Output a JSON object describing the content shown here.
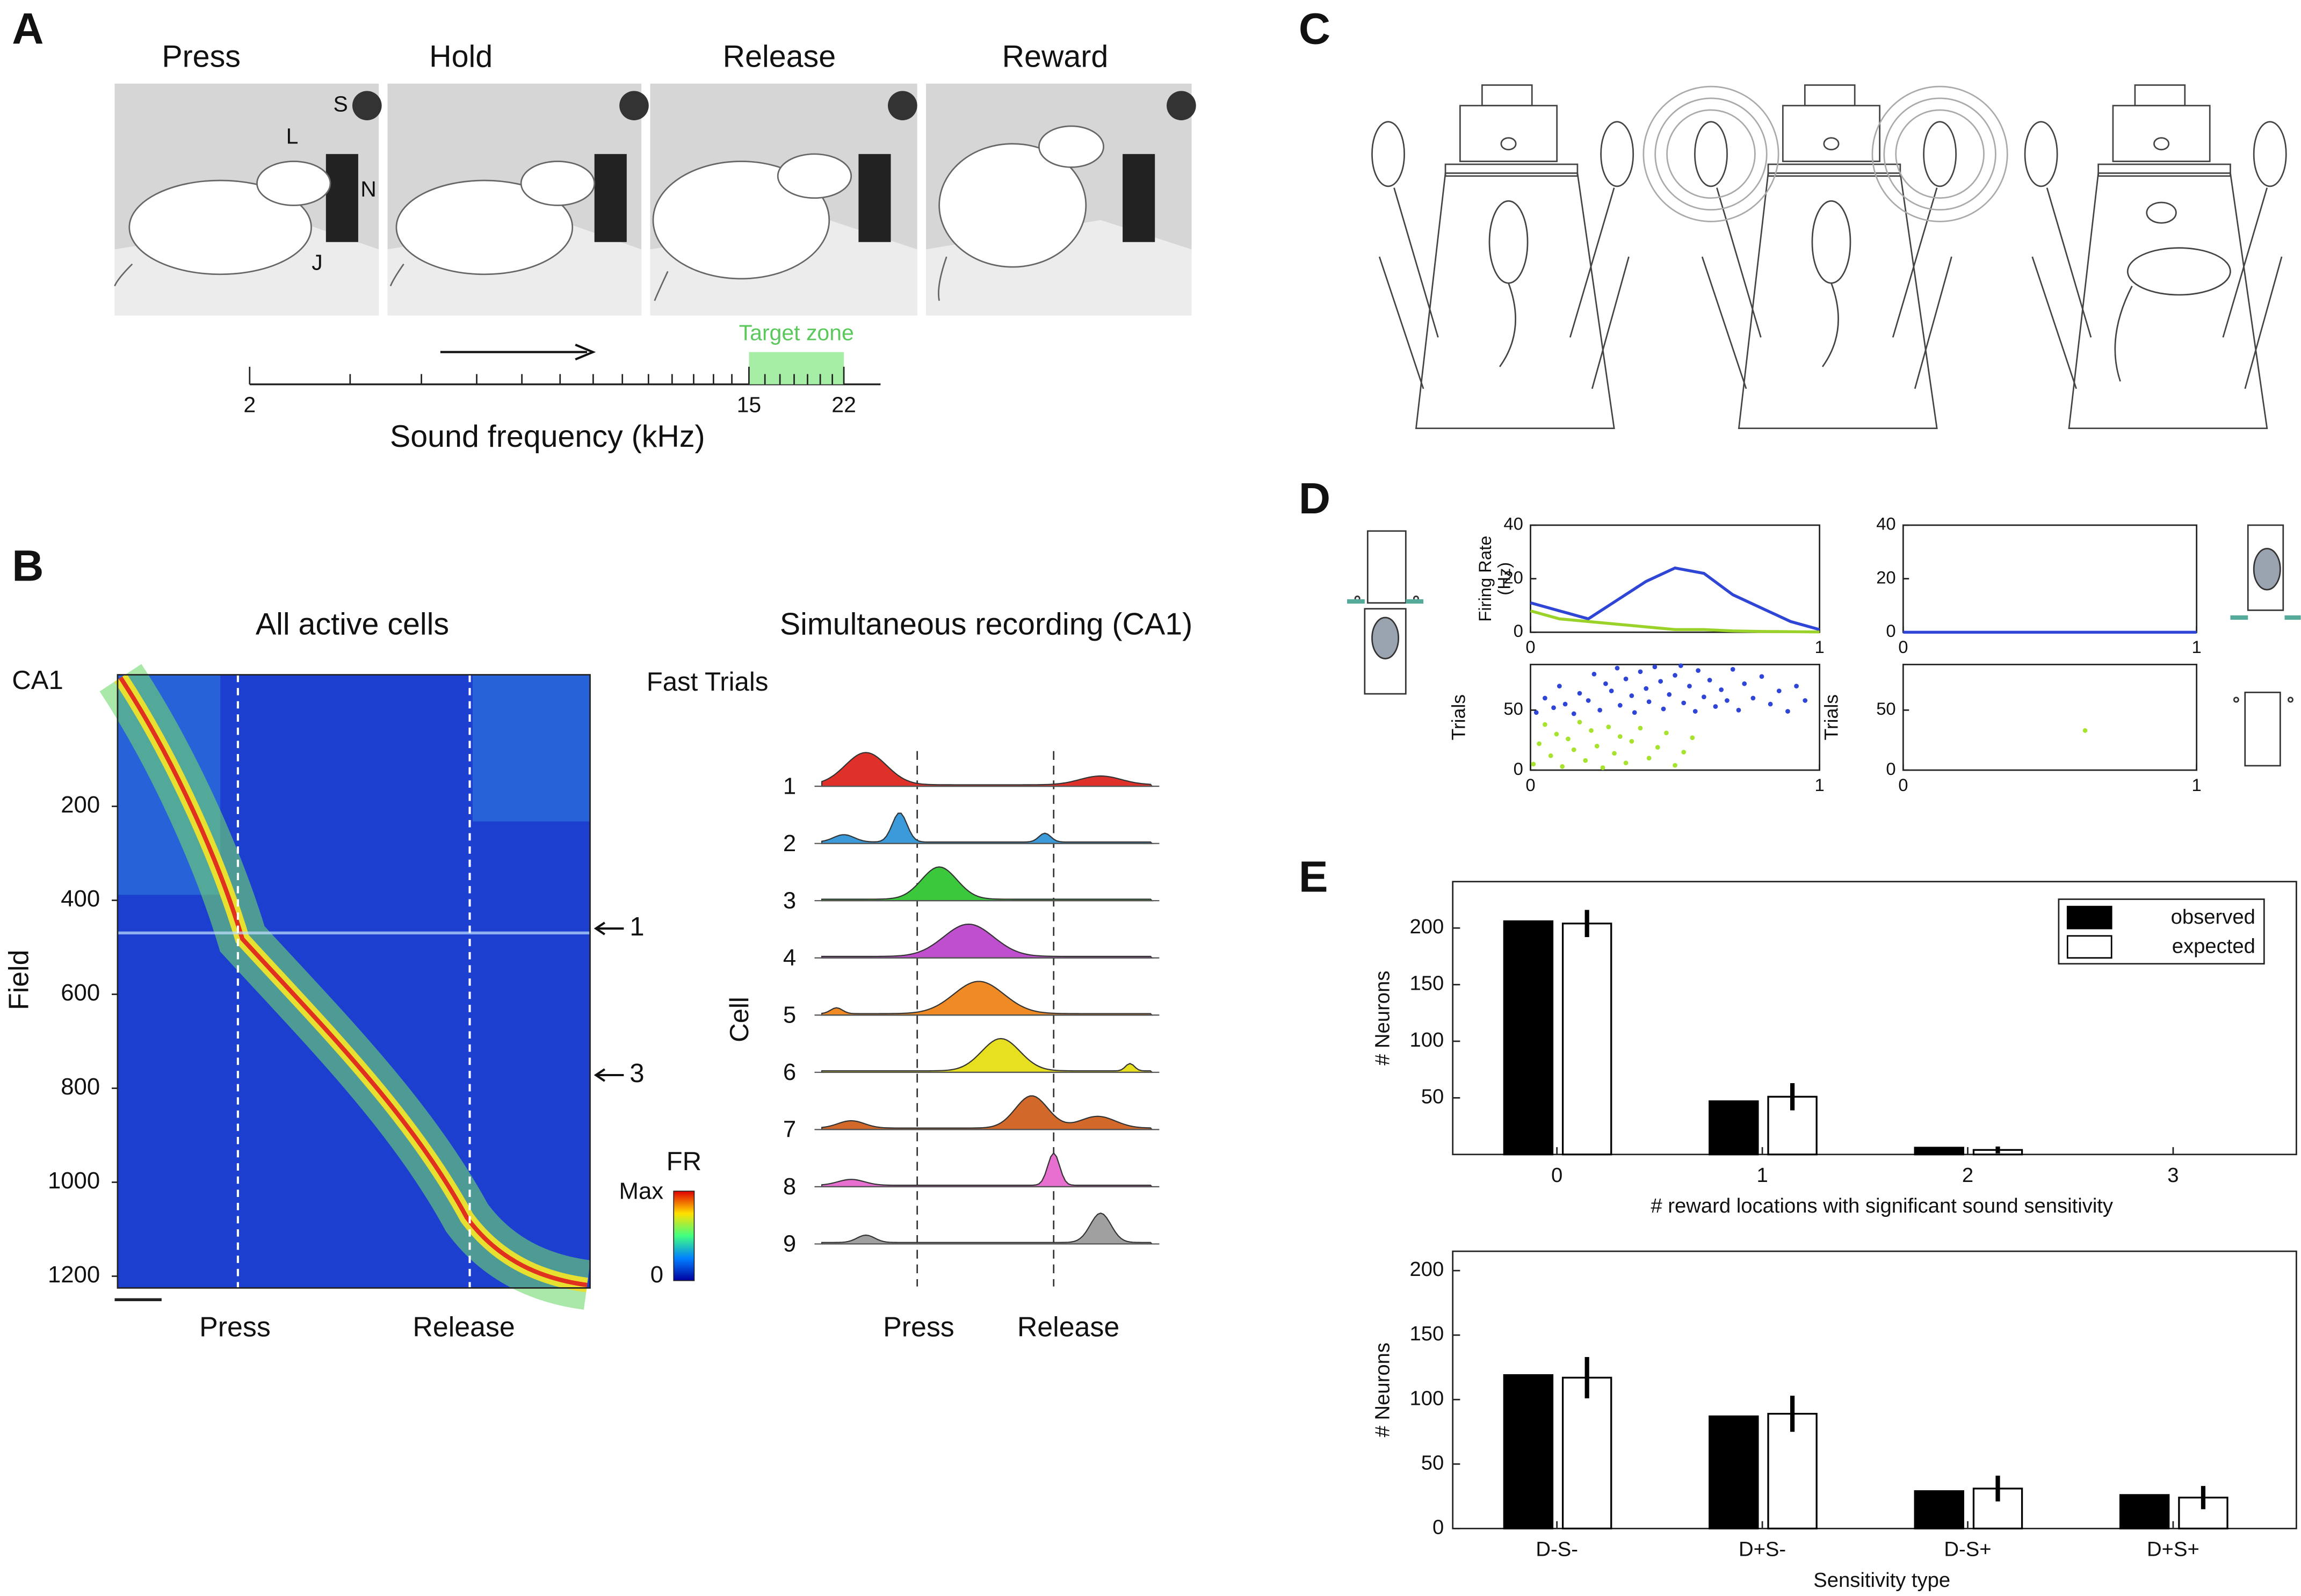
{
  "chart_data": [
    {
      "type": "frequency-axis",
      "panel": "A",
      "titles": [
        "Press",
        "Hold",
        "Release",
        "Reward"
      ],
      "annotations": [
        "S",
        "L",
        "N",
        "J"
      ],
      "xlabel": "Sound frequency (kHz)",
      "log_x": true,
      "xlim": [
        2,
        22
      ],
      "xticks": [
        2,
        15,
        22
      ],
      "minor_xticks": [
        3,
        4,
        5,
        6,
        7,
        8,
        9,
        10,
        11,
        12,
        13,
        14,
        16,
        17,
        18,
        19,
        20,
        21
      ],
      "target_zone": [
        15,
        22
      ],
      "target_label": "Target zone",
      "target_color": "#a6eea6"
    },
    {
      "type": "heatmap",
      "panel": "B",
      "title": "All active cells",
      "region": "CA1",
      "ylabel": "Field",
      "ylim": [
        -80,
        1225
      ],
      "yticks": [
        200,
        400,
        600,
        800,
        1000,
        1200
      ],
      "events": [
        "Press",
        "Release"
      ],
      "colorbar_title": "FR",
      "colorbar_labels": [
        "Max",
        "0"
      ],
      "arrows": [
        {
          "label": "1",
          "value": 460
        },
        {
          "label": "3",
          "value": 772
        }
      ]
    },
    {
      "type": "traces",
      "title": "Simultaneous recording (CA1)",
      "subtitle": "Fast Trials",
      "ylabel": "Cell",
      "categories": [
        "1",
        "2",
        "3",
        "4",
        "5",
        "6",
        "7",
        "8",
        "9"
      ],
      "colors": [
        "#e0302a",
        "#3b9ad9",
        "#3cc83c",
        "#c04fd0",
        "#f08a24",
        "#e6e020",
        "#d2692a",
        "#e66fd0",
        "#a0a0a0"
      ],
      "events": [
        "Press",
        "Release"
      ]
    },
    {
      "type": "line",
      "panel": "D",
      "ylabel": [
        "Firing Rate",
        "(Hz)"
      ],
      "x": [
        0,
        0.1,
        0.2,
        0.3,
        0.4,
        0.5,
        0.6,
        0.7,
        0.8,
        0.9,
        1
      ],
      "xlim": [
        0,
        1
      ],
      "xticks": [
        0,
        1
      ],
      "ylim": [
        0,
        40
      ],
      "yticks": [
        0,
        20,
        40
      ],
      "series": [
        {
          "color": "#2f45d6",
          "values": [
            11,
            8,
            5,
            12,
            19,
            24,
            22,
            14,
            9,
            4,
            1
          ]
        },
        {
          "color": "#9ad22a",
          "values": [
            8,
            5,
            4,
            3,
            2,
            1,
            1,
            0.5,
            0.3,
            0.2,
            0.1
          ]
        }
      ]
    },
    {
      "type": "scatter",
      "ylabel": "Trials",
      "xlim": [
        0,
        1
      ],
      "xticks": [
        0,
        1
      ],
      "ylim": [
        0,
        88
      ],
      "yticks": [
        0,
        50
      ],
      "series": [
        {
          "color": "#2f45d6",
          "x": [
            0.02,
            0.05,
            0.08,
            0.1,
            0.12,
            0.15,
            0.17,
            0.2,
            0.22,
            0.24,
            0.26,
            0.28,
            0.3,
            0.31,
            0.33,
            0.35,
            0.36,
            0.38,
            0.4,
            0.41,
            0.43,
            0.45,
            0.46,
            0.48,
            0.5,
            0.52,
            0.53,
            0.55,
            0.57,
            0.58,
            0.6,
            0.62,
            0.64,
            0.66,
            0.68,
            0.7,
            0.72,
            0.74,
            0.77,
            0.8,
            0.83,
            0.86,
            0.89,
            0.92,
            0.95
          ],
          "values": [
            48,
            60,
            52,
            70,
            55,
            47,
            64,
            58,
            80,
            50,
            72,
            66,
            85,
            54,
            76,
            62,
            48,
            82,
            68,
            57,
            86,
            74,
            51,
            63,
            79,
            87,
            56,
            70,
            49,
            83,
            61,
            75,
            53,
            67,
            58,
            84,
            50,
            72,
            60,
            78,
            55,
            66,
            49,
            70,
            58
          ]
        },
        {
          "color": "#a6e22e",
          "x": [
            0.01,
            0.03,
            0.05,
            0.07,
            0.09,
            0.11,
            0.13,
            0.15,
            0.17,
            0.19,
            0.21,
            0.23,
            0.25,
            0.27,
            0.29,
            0.31,
            0.33,
            0.35,
            0.38,
            0.41,
            0.44,
            0.47,
            0.5,
            0.53,
            0.56
          ],
          "values": [
            5,
            22,
            38,
            12,
            30,
            3,
            26,
            17,
            40,
            8,
            33,
            20,
            2,
            36,
            14,
            28,
            6,
            24,
            35,
            10,
            19,
            31,
            4,
            15,
            27
          ]
        }
      ]
    },
    {
      "type": "line",
      "x": [
        0,
        0.1,
        0.2,
        0.3,
        0.4,
        0.5,
        0.6,
        0.7,
        0.8,
        0.9,
        1
      ],
      "xlim": [
        0,
        1
      ],
      "xticks": [
        0,
        1
      ],
      "ylim": [
        0,
        40
      ],
      "yticks": [
        0,
        20,
        40
      ],
      "series": [
        {
          "color": "#2f45d6",
          "values": [
            0,
            0,
            0,
            0,
            0,
            0,
            0,
            0,
            0,
            0,
            0
          ]
        }
      ]
    },
    {
      "type": "scatter",
      "ylabel": "Trials",
      "xlim": [
        0,
        1
      ],
      "xticks": [
        0,
        1
      ],
      "ylim": [
        0,
        88
      ],
      "yticks": [
        0,
        50
      ],
      "series": [
        {
          "color": "#a6e22e",
          "x": [
            0.62
          ],
          "values": [
            33
          ]
        }
      ]
    },
    {
      "type": "bar",
      "panel": "E",
      "ylabel": "# Neurons",
      "xlabel": "# reward locations with significant sound sensitivity",
      "categories": [
        "0",
        "1",
        "2",
        "3"
      ],
      "ylim": [
        0,
        241
      ],
      "yticks": [
        50,
        100,
        150,
        200
      ],
      "legend": "upper right",
      "series": [
        {
          "name": "observed",
          "color": "#000000",
          "values": [
            206,
            47,
            6,
            0
          ]
        },
        {
          "name": "expected",
          "color": "#ffffff",
          "values": [
            204,
            51,
            4,
            0
          ],
          "errors": [
            12,
            12,
            3,
            0
          ]
        }
      ]
    },
    {
      "type": "bar",
      "ylabel": "# Neurons",
      "xlabel": "Sensitivity type",
      "categories": [
        "D-S-",
        "D+S-",
        "D-S+",
        "D+S+"
      ],
      "ylim": [
        0,
        215
      ],
      "yticks": [
        0,
        50,
        100,
        150,
        200
      ],
      "series": [
        {
          "color": "#000000",
          "values": [
            119,
            87,
            29,
            26
          ]
        },
        {
          "color": "#ffffff",
          "values": [
            117,
            89,
            31,
            24
          ],
          "errors": [
            16,
            14,
            10,
            9
          ]
        }
      ]
    }
  ],
  "illustration": {
    "panel": "C"
  }
}
